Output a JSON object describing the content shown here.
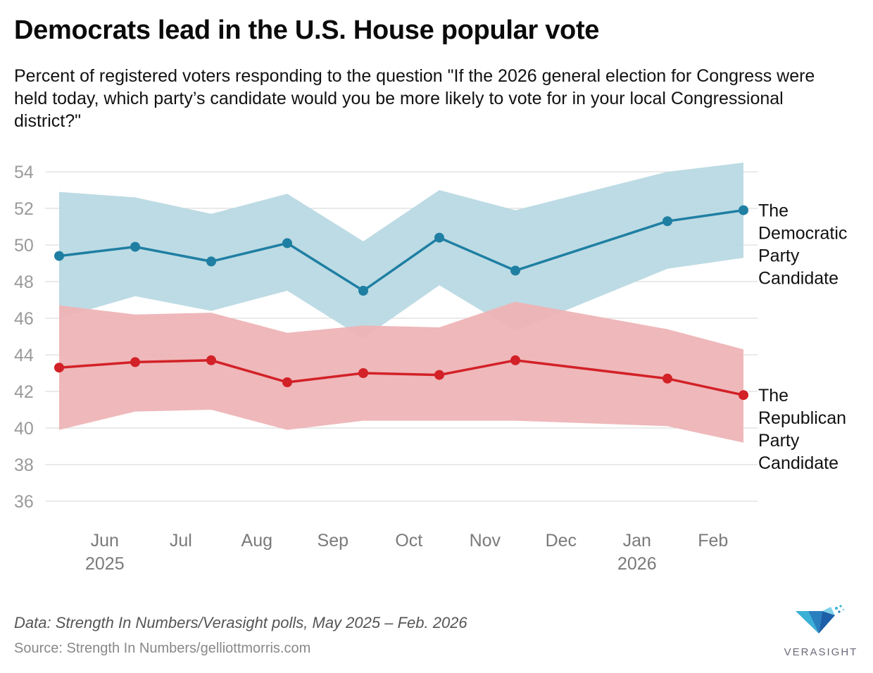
{
  "header": {
    "title": "Democrats lead in the U.S. House popular vote",
    "subtitle": "Percent of registered voters responding to the question \"If the 2026 general election for Congress were held today, which party’s candidate would you be more likely to vote for in your local Congressional district?\""
  },
  "footer": {
    "note": "Data: Strength In Numbers/Verasight polls, May 2025 – Feb. 2026",
    "source": "Source: Strength In Numbers/gelliottmorris.com",
    "logo_text": "VERASIGHT"
  },
  "colors": {
    "dem_line": "#1f7fa3",
    "dem_band": "#b9d9e3",
    "rep_line": "#d22127",
    "rep_band": "#eeb4b6",
    "grid": "#dddddd",
    "tick_text": "#9a9a9a",
    "axis_text": "#7a7a7a"
  },
  "chart_data": {
    "type": "line",
    "title": "Democrats lead in the U.S. House popular vote",
    "ylim": [
      36,
      54
    ],
    "yticks": [
      36,
      38,
      40,
      42,
      44,
      46,
      48,
      50,
      52,
      54
    ],
    "x_domain": [
      0,
      9.25
    ],
    "x_ticks": [
      {
        "pos": 0.6,
        "month": "Jun",
        "year": "2025"
      },
      {
        "pos": 1.6,
        "month": "Jul",
        "year": ""
      },
      {
        "pos": 2.6,
        "month": "Aug",
        "year": ""
      },
      {
        "pos": 3.6,
        "month": "Sep",
        "year": ""
      },
      {
        "pos": 4.6,
        "month": "Oct",
        "year": ""
      },
      {
        "pos": 5.6,
        "month": "Nov",
        "year": ""
      },
      {
        "pos": 6.6,
        "month": "Dec",
        "year": ""
      },
      {
        "pos": 7.6,
        "month": "Jan",
        "year": "2026"
      },
      {
        "pos": 8.6,
        "month": "Feb",
        "year": ""
      }
    ],
    "x": [
      0,
      1,
      2,
      3,
      4,
      5,
      6,
      8,
      9
    ],
    "series": [
      {
        "name": "The Democratic Party Candidate",
        "label_lines": [
          "The",
          "Democratic",
          "Party",
          "Candidate"
        ],
        "color_key": "dem",
        "values": [
          49.4,
          49.9,
          49.1,
          50.1,
          47.5,
          50.4,
          48.6,
          51.3,
          51.9
        ],
        "upper": [
          52.9,
          52.6,
          51.7,
          52.8,
          50.2,
          53.0,
          51.9,
          54.0,
          54.5
        ],
        "lower": [
          46.0,
          47.2,
          46.4,
          47.5,
          44.9,
          47.8,
          45.3,
          48.7,
          49.3
        ]
      },
      {
        "name": "The Republican Party Candidate",
        "label_lines": [
          "The",
          "Republican",
          "Party",
          "Candidate"
        ],
        "color_key": "rep",
        "values": [
          43.3,
          43.6,
          43.7,
          42.5,
          43.0,
          42.9,
          43.7,
          42.7,
          41.8
        ],
        "upper": [
          46.7,
          46.2,
          46.3,
          45.2,
          45.6,
          45.5,
          46.9,
          45.4,
          44.3
        ],
        "lower": [
          39.9,
          40.9,
          41.0,
          39.9,
          40.4,
          40.4,
          40.4,
          40.1,
          39.2
        ]
      }
    ]
  }
}
